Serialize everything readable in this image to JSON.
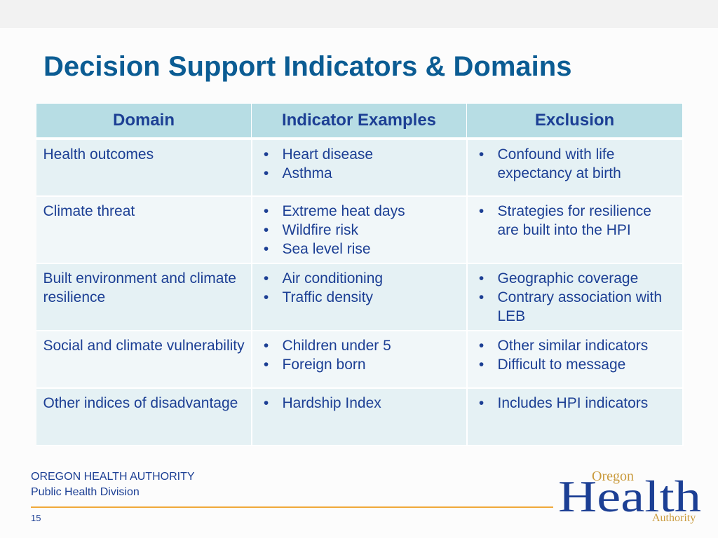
{
  "slide": {
    "title": "Decision Support Indicators & Domains",
    "table": {
      "headers": [
        "Domain",
        "Indicator Examples",
        "Exclusion"
      ],
      "rows": [
        {
          "domain": "Health outcomes",
          "indicators": [
            "Heart disease",
            "Asthma"
          ],
          "exclusions": [
            "Confound with life expectancy at birth"
          ]
        },
        {
          "domain": "Climate threat",
          "indicators": [
            "Extreme heat days",
            "Wildfire risk",
            "Sea level rise"
          ],
          "exclusions": [
            "Strategies for resilience are built into the HPI"
          ]
        },
        {
          "domain": "Built environment and climate resilience",
          "indicators": [
            "Air conditioning",
            "Traffic density"
          ],
          "exclusions": [
            "Geographic coverage",
            "Contrary association with LEB"
          ]
        },
        {
          "domain": "Social and climate vulnerability",
          "indicators": [
            "Children under 5",
            "Foreign born"
          ],
          "exclusions": [
            "Other similar indicators",
            "Difficult to message"
          ]
        },
        {
          "domain": "Other indices of disadvantage",
          "indicators": [
            "Hardship Index"
          ],
          "exclusions": [
            "Includes HPI indicators"
          ]
        }
      ]
    }
  },
  "footer": {
    "organization": "OREGON HEALTH AUTHORITY",
    "division": "Public Health Division",
    "page_number": "15"
  },
  "logo": {
    "top": "Oregon",
    "main": "Health",
    "bottom": "Authority"
  },
  "colors": {
    "title": "#0b5c93",
    "text": "#1c3f94",
    "header_bg": "#b7dde4",
    "row_bg_odd": "#e5f1f4",
    "row_bg_even": "#f1f7f9",
    "rule": "#f0a93a",
    "logo_gold": "#c99a3c"
  }
}
